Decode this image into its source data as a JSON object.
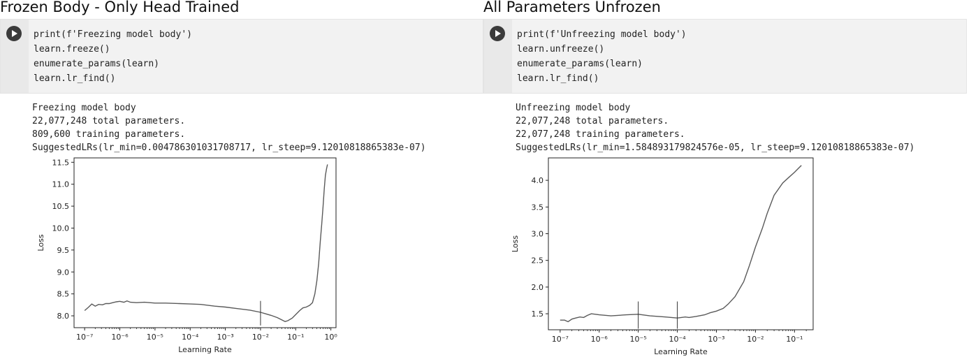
{
  "panels": [
    {
      "title": "Frozen Body - Only Head Trained",
      "code": [
        "print(f'Freezing model body')",
        "learn.freeze()",
        "enumerate_params(learn)",
        "learn.lr_find()"
      ],
      "output": [
        "Freezing model body",
        "22,077,248 total parameters.",
        "809,600 training parameters.",
        "SuggestedLRs(lr_min=0.004786301031708717, lr_steep=9.12010818865383e-07)"
      ],
      "run_icon": "play-circle-icon"
    },
    {
      "title": "All Parameters Unfrozen",
      "code": [
        "print(f'Unfreezing model body')",
        "learn.unfreeze()",
        "enumerate_params(learn)",
        "learn.lr_find()"
      ],
      "output": [
        "Unfreezing model body",
        "22,077,248 total parameters.",
        "22,077,248 training parameters.",
        "SuggestedLRs(lr_min=1.584893179824576e-05, lr_steep=9.12010818865383e-07)"
      ],
      "run_icon": "play-circle-icon"
    }
  ],
  "chart_data": [
    {
      "type": "line",
      "xlabel": "Learning Rate",
      "ylabel": "Loss",
      "xscale": "log",
      "xlim": [
        5e-08,
        1.4
      ],
      "ylim": [
        7.73,
        11.6
      ],
      "xticks": [
        1e-07,
        1e-06,
        1e-05,
        0.0001,
        0.001,
        0.01,
        0.1,
        1
      ],
      "xtick_labels": [
        "10⁻⁷",
        "10⁻⁶",
        "10⁻⁵",
        "10⁻⁴",
        "10⁻³",
        "10⁻²",
        "10⁻¹",
        "10⁰"
      ],
      "yticks": [
        8.0,
        8.5,
        9.0,
        9.5,
        10.0,
        10.5,
        11.0,
        11.5
      ],
      "ytick_labels": [
        "8.0",
        "8.5",
        "9.0",
        "9.5",
        "10.0",
        "10.5",
        "11.0",
        "11.5"
      ],
      "vlines": [
        {
          "x": 0.01,
          "y": [
            7.78,
            8.34
          ]
        }
      ],
      "line_color": "#5a5a5a",
      "grid": false,
      "series": [
        {
          "x": [
            1e-07,
            1.3e-07,
            1.6e-07,
            2e-07,
            2.5e-07,
            3.2e-07,
            4e-07,
            5e-07,
            6.3e-07,
            8e-07,
            1e-06,
            1.3e-06,
            1.6e-06,
            2e-06,
            3e-06,
            5e-06,
            1e-05,
            2e-05,
            5e-05,
            0.0001,
            0.0002,
            0.0005,
            0.001,
            0.002,
            0.005,
            0.01,
            0.02,
            0.03,
            0.04,
            0.05,
            0.06,
            0.08,
            0.1,
            0.13,
            0.16,
            0.2,
            0.25,
            0.3,
            0.35,
            0.4,
            0.45,
            0.5,
            0.55,
            0.6,
            0.65,
            0.7,
            0.75,
            0.8
          ],
          "y": [
            8.12,
            8.2,
            8.27,
            8.22,
            8.26,
            8.25,
            8.28,
            8.28,
            8.3,
            8.32,
            8.33,
            8.31,
            8.34,
            8.31,
            8.3,
            8.31,
            8.29,
            8.29,
            8.28,
            8.27,
            8.26,
            8.22,
            8.2,
            8.17,
            8.13,
            8.08,
            8.01,
            7.96,
            7.91,
            7.87,
            7.89,
            7.95,
            8.03,
            8.12,
            8.18,
            8.2,
            8.24,
            8.3,
            8.5,
            8.8,
            9.2,
            9.7,
            10.1,
            10.5,
            10.9,
            11.2,
            11.35,
            11.45
          ]
        }
      ]
    },
    {
      "type": "line",
      "xlabel": "Learning Rate",
      "ylabel": "Loss",
      "xscale": "log",
      "xlim": [
        5e-08,
        0.3
      ],
      "ylim": [
        1.2,
        4.42
      ],
      "xticks": [
        1e-07,
        1e-06,
        1e-05,
        0.0001,
        0.001,
        0.01,
        0.1
      ],
      "xtick_labels": [
        "10⁻⁷",
        "10⁻⁶",
        "10⁻⁵",
        "10⁻⁴",
        "10⁻³",
        "10⁻²",
        "10⁻¹"
      ],
      "yticks": [
        1.5,
        2.0,
        2.5,
        3.0,
        3.5,
        4.0
      ],
      "ytick_labels": [
        "1.5",
        "2.0",
        "2.5",
        "3.0",
        "3.5",
        "4.0"
      ],
      "vlines": [
        {
          "x": 1e-05,
          "y": [
            1.22,
            1.73
          ]
        },
        {
          "x": 0.0001,
          "y": [
            1.22,
            1.73
          ]
        }
      ],
      "line_color": "#5a5a5a",
      "grid": false,
      "series": [
        {
          "x": [
            1e-07,
            1.3e-07,
            1.6e-07,
            2e-07,
            2.5e-07,
            3.2e-07,
            4e-07,
            5e-07,
            6.3e-07,
            8e-07,
            1e-06,
            2e-06,
            3e-06,
            5e-06,
            1e-05,
            2e-05,
            5e-05,
            0.0001,
            0.00016,
            0.0002,
            0.0003,
            0.0005,
            0.0007,
            0.001,
            0.0015,
            0.002,
            0.003,
            0.005,
            0.007,
            0.01,
            0.015,
            0.02,
            0.03,
            0.05,
            0.07,
            0.1,
            0.15
          ],
          "y": [
            1.38,
            1.38,
            1.35,
            1.4,
            1.42,
            1.44,
            1.43,
            1.47,
            1.5,
            1.49,
            1.48,
            1.46,
            1.47,
            1.48,
            1.49,
            1.46,
            1.44,
            1.42,
            1.44,
            1.43,
            1.45,
            1.48,
            1.52,
            1.55,
            1.6,
            1.68,
            1.82,
            2.1,
            2.4,
            2.75,
            3.1,
            3.38,
            3.72,
            3.95,
            4.05,
            4.15,
            4.28
          ]
        }
      ]
    }
  ]
}
